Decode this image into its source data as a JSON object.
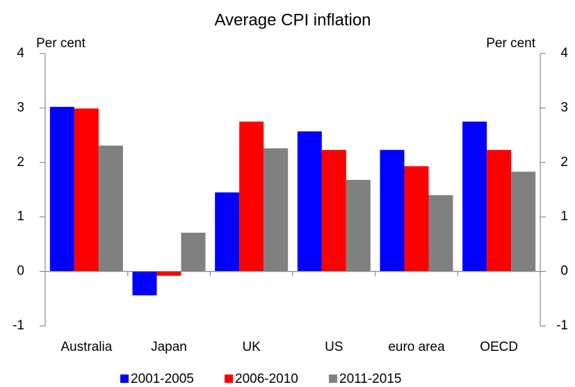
{
  "chart_data": {
    "type": "bar",
    "title": "Average CPI inflation",
    "y_label": "Per cent",
    "y2_label": "Per cent",
    "categories": [
      "Australia",
      "Japan",
      "UK",
      "US",
      "euro area",
      "OECD"
    ],
    "series": [
      {
        "name": "2001-2005",
        "color": "#0000ff",
        "values": [
          3.02,
          -0.44,
          1.45,
          2.57,
          2.23,
          2.75
        ]
      },
      {
        "name": "2006-2010",
        "color": "#ff0000",
        "values": [
          2.99,
          -0.08,
          2.75,
          2.23,
          1.93,
          2.23
        ]
      },
      {
        "name": "2011-2015",
        "color": "#808080",
        "values": [
          2.31,
          0.71,
          2.26,
          1.68,
          1.4,
          1.83
        ]
      }
    ],
    "ylim": [
      -1,
      4
    ],
    "yticks": [
      -1,
      0,
      1,
      2,
      3,
      4
    ],
    "legend": "bottom"
  }
}
